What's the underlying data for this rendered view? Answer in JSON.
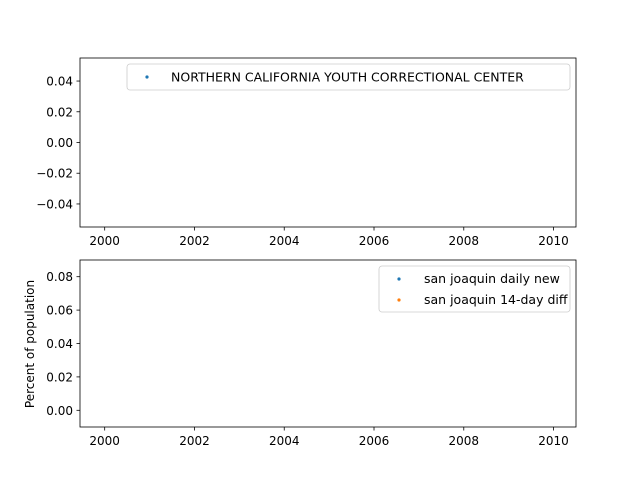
{
  "chart_data": [
    {
      "type": "scatter",
      "xlim": [
        1999.45,
        2010.5
      ],
      "ylim": [
        -0.055,
        0.055
      ],
      "x_ticks": [
        2000,
        2002,
        2004,
        2006,
        2008,
        2010
      ],
      "x_tick_labels": [
        "2000",
        "2002",
        "2004",
        "2006",
        "2008",
        "2010"
      ],
      "y_ticks": [
        -0.04,
        -0.02,
        0.0,
        0.02,
        0.04
      ],
      "y_tick_labels": [
        "−0.04",
        "−0.02",
        "0.00",
        "0.02",
        "0.04"
      ],
      "ylabel": "",
      "grid": false,
      "legend_position": "upper-right",
      "series": [
        {
          "name": "NORTHERN CALIFORNIA YOUTH CORRECTIONAL CENTER",
          "color": "#1f77b4",
          "points": []
        }
      ]
    },
    {
      "type": "scatter",
      "xlim": [
        1999.45,
        2010.5
      ],
      "ylim": [
        -0.01,
        0.09
      ],
      "x_ticks": [
        2000,
        2002,
        2004,
        2006,
        2008,
        2010
      ],
      "x_tick_labels": [
        "2000",
        "2002",
        "2004",
        "2006",
        "2008",
        "2010"
      ],
      "y_ticks": [
        0.0,
        0.02,
        0.04,
        0.06,
        0.08
      ],
      "y_tick_labels": [
        "0.00",
        "0.02",
        "0.04",
        "0.06",
        "0.08"
      ],
      "ylabel": "Percent of population",
      "grid": false,
      "legend_position": "upper-right",
      "series": [
        {
          "name": "san joaquin daily new",
          "color": "#1f77b4",
          "points": []
        },
        {
          "name": "san joaquin 14-day diff",
          "color": "#ff7f0e",
          "points": []
        }
      ]
    }
  ]
}
